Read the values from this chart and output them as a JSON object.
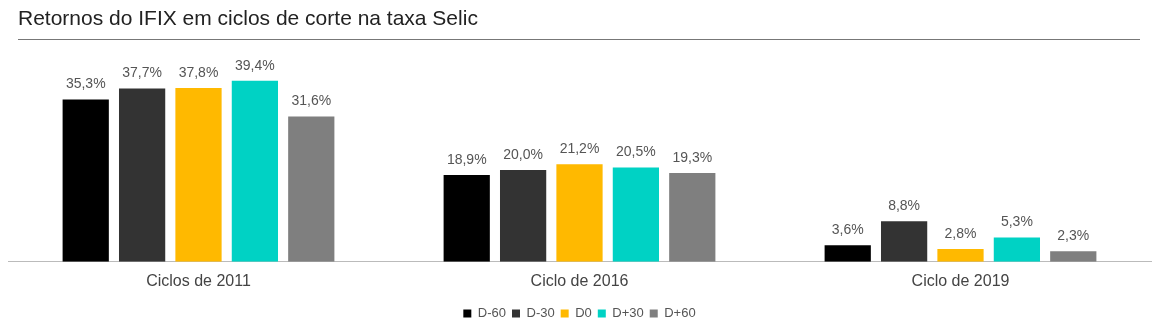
{
  "chart_data": {
    "type": "bar",
    "title": "Retornos do IFIX em ciclos de corte na taxa Selic",
    "categories": [
      "Ciclos de 2011",
      "Ciclo de 2016",
      "Ciclo de 2019"
    ],
    "series": [
      {
        "name": "D-60",
        "color": "#000000",
        "values": [
          35.3,
          18.9,
          3.6
        ],
        "value_labels": [
          "35,3%",
          "18,9%",
          "3,6%"
        ]
      },
      {
        "name": "D-30",
        "color": "#333333",
        "values": [
          37.7,
          20.0,
          8.8
        ],
        "value_labels": [
          "37,7%",
          "20,0%",
          "8,8%"
        ]
      },
      {
        "name": "D0",
        "color": "#ffb900",
        "values": [
          37.8,
          21.2,
          2.8
        ],
        "value_labels": [
          "37,8%",
          "21,2%",
          "2,8%"
        ]
      },
      {
        "name": "D+30",
        "color": "#00d2c4",
        "values": [
          39.4,
          20.5,
          5.3
        ],
        "value_labels": [
          "39,4%",
          "20,5%",
          "5,3%"
        ]
      },
      {
        "name": "D+60",
        "color": "#7f7f7f",
        "values": [
          31.6,
          19.3,
          2.3
        ],
        "value_labels": [
          "31,6%",
          "19,3%",
          "2,3%"
        ]
      }
    ],
    "legend": "bottom",
    "grid": false
  }
}
